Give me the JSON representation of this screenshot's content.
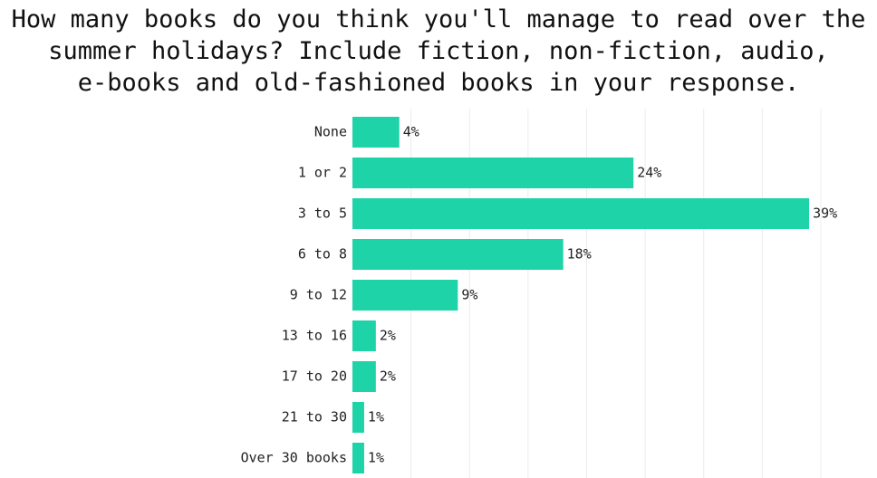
{
  "chart_data": {
    "type": "bar",
    "orientation": "horizontal",
    "title": "How many books do you think you'll manage to read over the\nsummer holidays? Include fiction, non-fiction, audio,\ne-books and old-fashioned books in your response.",
    "categories": [
      "None",
      "1 or 2",
      "3 to 5",
      "6 to 8",
      "9 to 12",
      "13 to 16",
      "17 to 20",
      "21 to 30",
      "Over 30 books"
    ],
    "values": [
      4,
      24,
      39,
      18,
      9,
      2,
      2,
      1,
      1
    ],
    "value_labels": [
      "4%",
      "24%",
      "39%",
      "18%",
      "9%",
      "2%",
      "2%",
      "1%",
      "1%"
    ],
    "unit": "%",
    "xlim": [
      0,
      40
    ],
    "grid": true,
    "colors": {
      "bar": "#1dd3a7"
    }
  }
}
